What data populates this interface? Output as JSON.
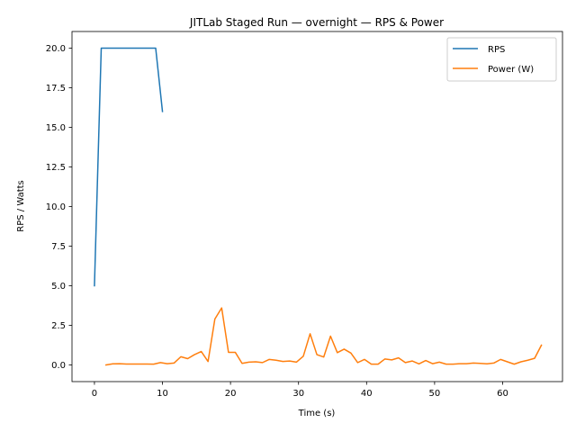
{
  "chart_data": {
    "type": "line",
    "title": "JITLab Staged Run — overnight — RPS & Power",
    "xlabel": "Time (s)",
    "ylabel": "RPS / Watts",
    "xlim": [
      -3.3,
      68.8
    ],
    "ylim": [
      -1.05,
      21.05
    ],
    "xticks": [
      0,
      10,
      20,
      30,
      40,
      50,
      60
    ],
    "xtick_labels": [
      "0",
      "10",
      "20",
      "30",
      "40",
      "50",
      "60"
    ],
    "yticks": [
      0.0,
      2.5,
      5.0,
      7.5,
      10.0,
      12.5,
      15.0,
      17.5,
      20.0
    ],
    "ytick_labels": [
      "0.0",
      "2.5",
      "5.0",
      "7.5",
      "10.0",
      "12.5",
      "15.0",
      "17.5",
      "20.0"
    ],
    "grid": false,
    "legend": "top-right",
    "series": [
      {
        "name": "RPS",
        "color": "#1f77b4",
        "x": [
          0,
          1,
          2,
          3,
          4,
          5,
          6,
          7,
          8,
          9,
          10
        ],
        "y": [
          5.0,
          20.0,
          20.0,
          20.0,
          20.0,
          20.0,
          20.0,
          20.0,
          20.0,
          20.0,
          16.0
        ]
      },
      {
        "name": "Power (W)",
        "color": "#ff7f0e",
        "x": [
          1.7,
          2.7,
          3.7,
          4.7,
          5.7,
          6.7,
          7.7,
          8.7,
          9.7,
          10.7,
          11.7,
          12.7,
          13.7,
          14.7,
          15.7,
          16.7,
          17.7,
          18.7,
          19.7,
          20.7,
          21.7,
          22.7,
          23.7,
          24.7,
          25.7,
          26.7,
          27.7,
          28.7,
          29.7,
          30.7,
          31.7,
          32.7,
          33.7,
          34.7,
          35.7,
          36.7,
          37.7,
          38.7,
          39.7,
          40.7,
          41.7,
          42.7,
          43.7,
          44.7,
          45.7,
          46.7,
          47.7,
          48.7,
          49.7,
          50.7,
          51.7,
          52.7,
          53.7,
          54.7,
          55.7,
          56.7,
          57.7,
          58.7,
          59.7,
          60.7,
          61.7,
          62.7,
          63.7,
          64.7,
          65.7
        ],
        "y": [
          0.0,
          0.07,
          0.08,
          0.06,
          0.06,
          0.06,
          0.06,
          0.05,
          0.15,
          0.08,
          0.12,
          0.52,
          0.4,
          0.65,
          0.85,
          0.22,
          2.9,
          3.6,
          0.8,
          0.8,
          0.1,
          0.18,
          0.2,
          0.15,
          0.35,
          0.3,
          0.22,
          0.25,
          0.18,
          0.55,
          1.97,
          0.65,
          0.5,
          1.82,
          0.78,
          1.0,
          0.75,
          0.15,
          0.35,
          0.05,
          0.05,
          0.38,
          0.32,
          0.45,
          0.15,
          0.25,
          0.07,
          0.28,
          0.08,
          0.18,
          0.05,
          0.05,
          0.08,
          0.08,
          0.12,
          0.1,
          0.07,
          0.12,
          0.35,
          0.2,
          0.05,
          0.2,
          0.3,
          0.42,
          1.25
        ]
      }
    ]
  }
}
